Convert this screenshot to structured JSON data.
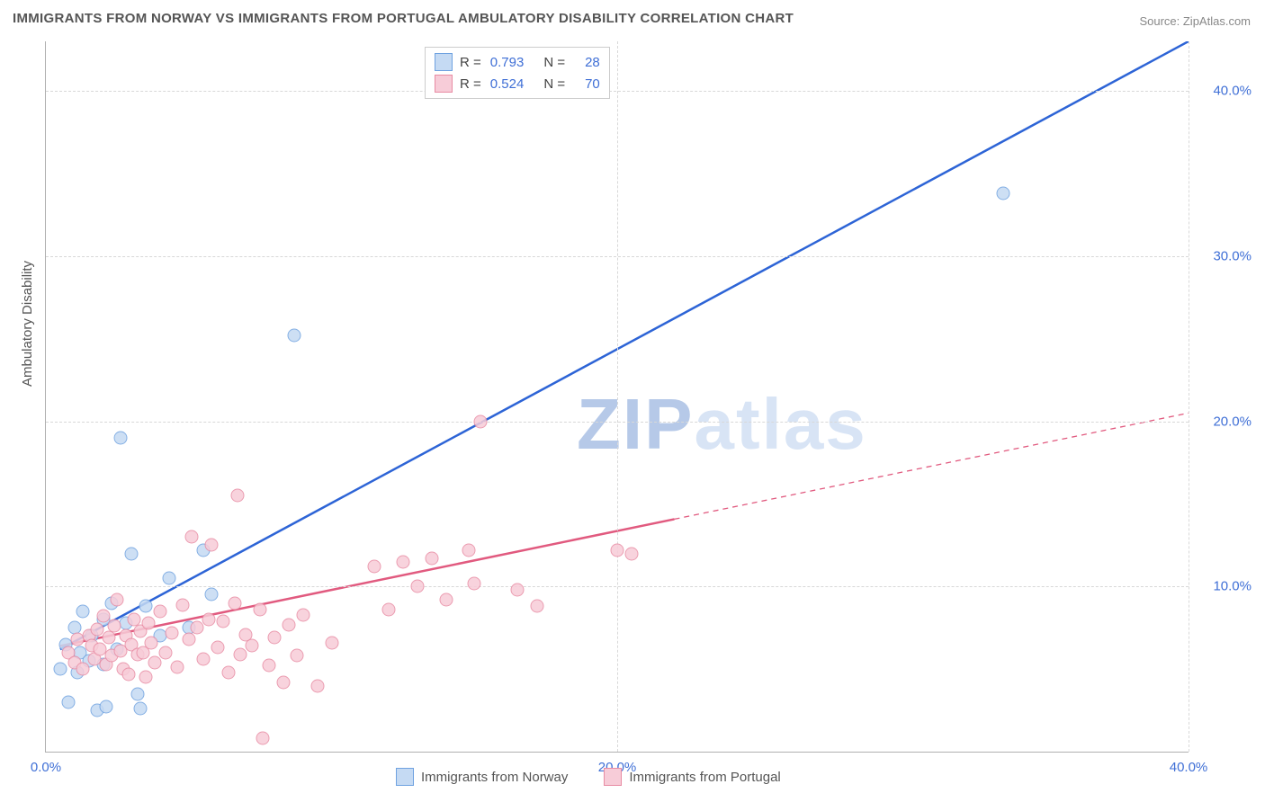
{
  "title": "IMMIGRANTS FROM NORWAY VS IMMIGRANTS FROM PORTUGAL AMBULATORY DISABILITY CORRELATION CHART",
  "source": "Source: ZipAtlas.com",
  "ylabel": "Ambulatory Disability",
  "watermark_a": "ZIP",
  "watermark_b": "atlas",
  "chart": {
    "type": "scatter",
    "xlim": [
      0,
      40
    ],
    "ylim": [
      0,
      43
    ],
    "y_ticks": [
      10,
      20,
      30,
      40
    ],
    "y_tick_labels": [
      "10.0%",
      "20.0%",
      "30.0%",
      "40.0%"
    ],
    "x_ticks": [
      0,
      20,
      40
    ],
    "x_tick_labels": [
      "0.0%",
      "20.0%",
      "40.0%"
    ],
    "grid_color": "#d8d8d8",
    "axis_color": "#b0b0b0",
    "background_color": "#ffffff",
    "series": [
      {
        "name": "Immigrants from Norway",
        "fill": "#c5daf3",
        "stroke": "#6fa2e0",
        "trend_color": "#2d64d6",
        "r": 0.793,
        "n": 28,
        "trend": {
          "x1": 0.5,
          "y1": 6.2,
          "x2": 40,
          "y2": 43,
          "dash_from_x": null
        },
        "points": [
          [
            0.5,
            5.0
          ],
          [
            0.7,
            6.5
          ],
          [
            0.8,
            3.0
          ],
          [
            1.0,
            7.5
          ],
          [
            1.1,
            4.8
          ],
          [
            1.2,
            6.0
          ],
          [
            1.3,
            8.5
          ],
          [
            1.5,
            5.5
          ],
          [
            1.6,
            7.0
          ],
          [
            1.8,
            2.5
          ],
          [
            2.0,
            8.0
          ],
          [
            2.1,
            2.7
          ],
          [
            2.3,
            9.0
          ],
          [
            2.5,
            6.2
          ],
          [
            2.6,
            19.0
          ],
          [
            2.8,
            7.8
          ],
          [
            3.0,
            12.0
          ],
          [
            3.2,
            3.5
          ],
          [
            3.3,
            2.6
          ],
          [
            3.5,
            8.8
          ],
          [
            4.0,
            7.0
          ],
          [
            4.3,
            10.5
          ],
          [
            5.0,
            7.5
          ],
          [
            5.5,
            12.2
          ],
          [
            5.8,
            9.5
          ],
          [
            8.7,
            25.2
          ],
          [
            33.5,
            33.8
          ],
          [
            2.0,
            5.3
          ]
        ]
      },
      {
        "name": "Immigrants from Portugal",
        "fill": "#f7ccd8",
        "stroke": "#e88ba3",
        "trend_color": "#e15a7f",
        "r": 0.524,
        "n": 70,
        "trend": {
          "x1": 0.5,
          "y1": 6.4,
          "x2": 40,
          "y2": 20.5,
          "dash_from_x": 22
        },
        "points": [
          [
            0.8,
            6.0
          ],
          [
            1.0,
            5.4
          ],
          [
            1.1,
            6.8
          ],
          [
            1.3,
            5.0
          ],
          [
            1.5,
            7.0
          ],
          [
            1.6,
            6.4
          ],
          [
            1.7,
            5.6
          ],
          [
            1.8,
            7.4
          ],
          [
            1.9,
            6.2
          ],
          [
            2.0,
            8.2
          ],
          [
            2.1,
            5.3
          ],
          [
            2.2,
            6.9
          ],
          [
            2.3,
            5.8
          ],
          [
            2.4,
            7.6
          ],
          [
            2.5,
            9.2
          ],
          [
            2.6,
            6.1
          ],
          [
            2.7,
            5.0
          ],
          [
            2.8,
            7.0
          ],
          [
            2.9,
            4.7
          ],
          [
            3.0,
            6.5
          ],
          [
            3.1,
            8.0
          ],
          [
            3.2,
            5.9
          ],
          [
            3.3,
            7.3
          ],
          [
            3.4,
            6.0
          ],
          [
            3.5,
            4.5
          ],
          [
            3.6,
            7.8
          ],
          [
            3.7,
            6.6
          ],
          [
            3.8,
            5.4
          ],
          [
            4.0,
            8.5
          ],
          [
            4.2,
            6.0
          ],
          [
            4.4,
            7.2
          ],
          [
            4.6,
            5.1
          ],
          [
            4.8,
            8.9
          ],
          [
            5.0,
            6.8
          ],
          [
            5.1,
            13.0
          ],
          [
            5.3,
            7.5
          ],
          [
            5.5,
            5.6
          ],
          [
            5.7,
            8.0
          ],
          [
            5.8,
            12.5
          ],
          [
            6.0,
            6.3
          ],
          [
            6.2,
            7.9
          ],
          [
            6.4,
            4.8
          ],
          [
            6.6,
            9.0
          ],
          [
            6.7,
            15.5
          ],
          [
            6.8,
            5.9
          ],
          [
            7.0,
            7.1
          ],
          [
            7.2,
            6.4
          ],
          [
            7.5,
            8.6
          ],
          [
            7.6,
            0.8
          ],
          [
            7.8,
            5.2
          ],
          [
            8.0,
            6.9
          ],
          [
            8.3,
            4.2
          ],
          [
            8.5,
            7.7
          ],
          [
            8.8,
            5.8
          ],
          [
            9.0,
            8.3
          ],
          [
            9.5,
            4.0
          ],
          [
            10.0,
            6.6
          ],
          [
            11.5,
            11.2
          ],
          [
            12.0,
            8.6
          ],
          [
            12.5,
            11.5
          ],
          [
            13.0,
            10.0
          ],
          [
            13.5,
            11.7
          ],
          [
            14.0,
            9.2
          ],
          [
            14.8,
            12.2
          ],
          [
            15.0,
            10.2
          ],
          [
            15.2,
            20.0
          ],
          [
            16.5,
            9.8
          ],
          [
            17.2,
            8.8
          ],
          [
            20.0,
            12.2
          ],
          [
            20.5,
            12.0
          ]
        ]
      }
    ]
  },
  "legend_top": [
    {
      "swatch_fill": "#c5daf3",
      "swatch_stroke": "#6fa2e0",
      "r_label": "R =",
      "r": "0.793",
      "n_label": "N =",
      "n": "28"
    },
    {
      "swatch_fill": "#f7ccd8",
      "swatch_stroke": "#e88ba3",
      "r_label": "R =",
      "r": "0.524",
      "n_label": "N =",
      "n": "70"
    }
  ],
  "legend_bottom": [
    {
      "swatch_fill": "#c5daf3",
      "swatch_stroke": "#6fa2e0",
      "label": "Immigrants from Norway"
    },
    {
      "swatch_fill": "#f7ccd8",
      "swatch_stroke": "#e88ba3",
      "label": "Immigrants from Portugal"
    }
  ]
}
